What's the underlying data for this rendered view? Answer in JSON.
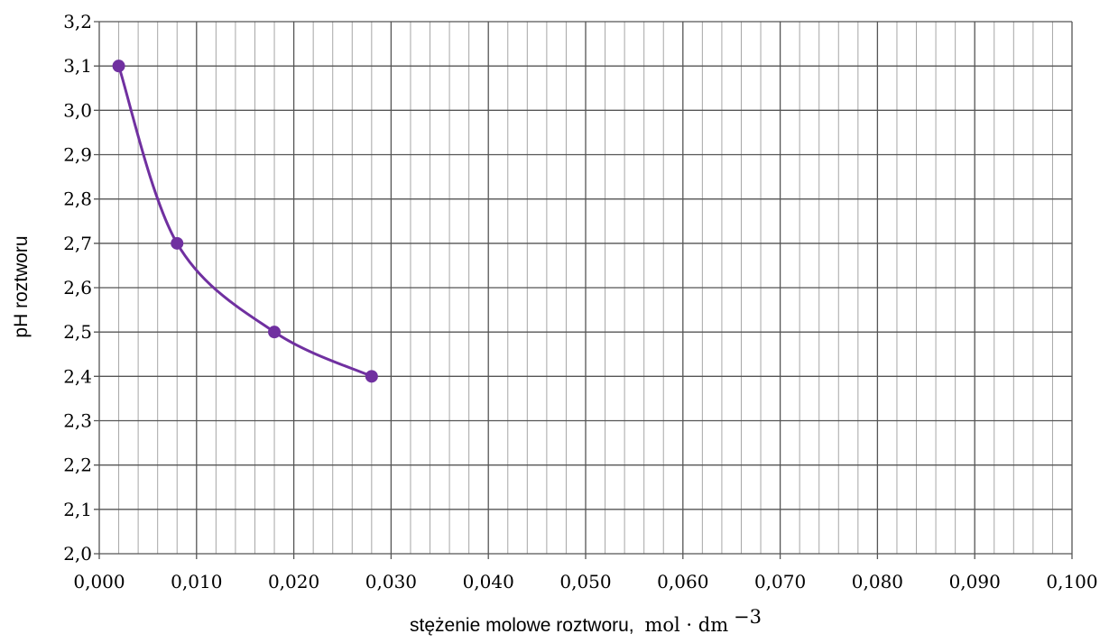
{
  "chart_data": {
    "type": "line",
    "xlabel": "stężenie molowe roztworu,",
    "xlabel_unit": "mol · dm",
    "xlabel_unit_exponent": "−3",
    "ylabel": "pH roztworu",
    "xlim": [
      0.0,
      0.1
    ],
    "ylim": [
      2.0,
      3.2
    ],
    "x_ticks": [
      0.0,
      0.01,
      0.02,
      0.03,
      0.04,
      0.05,
      0.06,
      0.07,
      0.08,
      0.09,
      0.1
    ],
    "x_tick_labels": [
      "0,000",
      "0,010",
      "0,020",
      "0,030",
      "0,040",
      "0,050",
      "0,060",
      "0,070",
      "0,080",
      "0,090",
      "0,100"
    ],
    "y_ticks": [
      2.0,
      2.1,
      2.2,
      2.3,
      2.4,
      2.5,
      2.6,
      2.7,
      2.8,
      2.9,
      3.0,
      3.1,
      3.2
    ],
    "y_tick_labels": [
      "2,0",
      "2,1",
      "2,2",
      "2,3",
      "2,4",
      "2,5",
      "2,6",
      "2,7",
      "2,8",
      "2,9",
      "3,0",
      "3,1",
      "3,2"
    ],
    "x_minor_step": 0.002,
    "grid": true,
    "smooth": true,
    "series": [
      {
        "color": "#7030A0",
        "points": [
          {
            "x": 0.002,
            "y": 3.1
          },
          {
            "x": 0.008,
            "y": 2.7
          },
          {
            "x": 0.018,
            "y": 2.5
          },
          {
            "x": 0.028,
            "y": 2.4
          }
        ]
      }
    ]
  }
}
